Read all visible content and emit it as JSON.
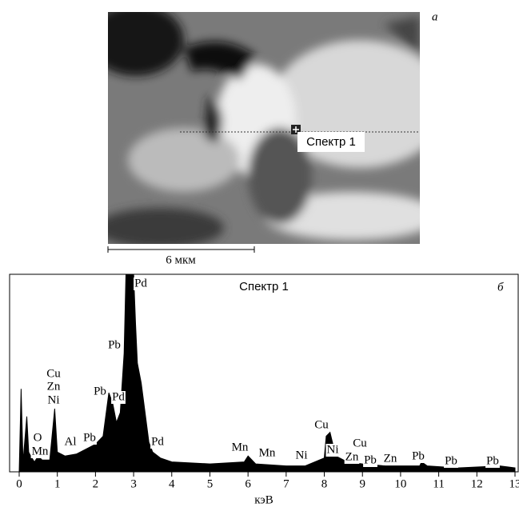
{
  "image_panel": {
    "label": "а",
    "marker_label": "Спектр 1",
    "scale_bar": "6 мкм"
  },
  "chart_data": {
    "type": "area",
    "title": "Спектр 1",
    "panel_label": "б",
    "xlabel": "кэВ",
    "color": "#000000",
    "xlim": [
      0,
      13
    ],
    "xticks": [
      0,
      1,
      2,
      3,
      4,
      5,
      6,
      7,
      8,
      9,
      10,
      11,
      12,
      13
    ],
    "ylim": [
      0,
      100
    ],
    "x": [
      0,
      0.05,
      0.1,
      0.2,
      0.25,
      0.3,
      0.4,
      0.5,
      0.6,
      0.8,
      0.93,
      1.0,
      1.2,
      1.5,
      1.8,
      2.0,
      2.2,
      2.35,
      2.45,
      2.55,
      2.65,
      2.75,
      2.8,
      2.9,
      3.0,
      3.05,
      3.1,
      3.2,
      3.3,
      3.4,
      3.5,
      3.7,
      4.0,
      5.0,
      5.9,
      6.0,
      6.2,
      7.0,
      7.5,
      8.0,
      8.05,
      8.15,
      8.3,
      8.6,
      9.0,
      9.6,
      10.5,
      10.55,
      10.7,
      11.5,
      12.6,
      13
    ],
    "values": [
      0,
      42,
      5,
      28,
      10,
      8,
      5,
      8,
      6,
      6,
      32,
      10,
      8,
      9,
      12,
      14,
      18,
      40,
      35,
      25,
      30,
      60,
      100,
      100,
      100,
      75,
      55,
      45,
      30,
      15,
      10,
      7,
      5,
      4,
      5,
      8,
      4,
      3,
      3,
      7,
      18,
      20,
      8,
      5,
      4,
      3,
      3,
      5,
      3,
      2,
      3,
      2
    ],
    "annotations": [
      "Pd",
      "Pb",
      "Cu",
      "Zn",
      "Ni",
      "Pb",
      "Pd",
      "O",
      "Mn",
      "Al",
      "Pb",
      "Pd",
      "Mn",
      "Mn",
      "Ni",
      "Cu",
      "Ni",
      "Cu",
      "Zn",
      "Pb",
      "Zn",
      "Pb",
      "Pb",
      "Pb"
    ]
  }
}
